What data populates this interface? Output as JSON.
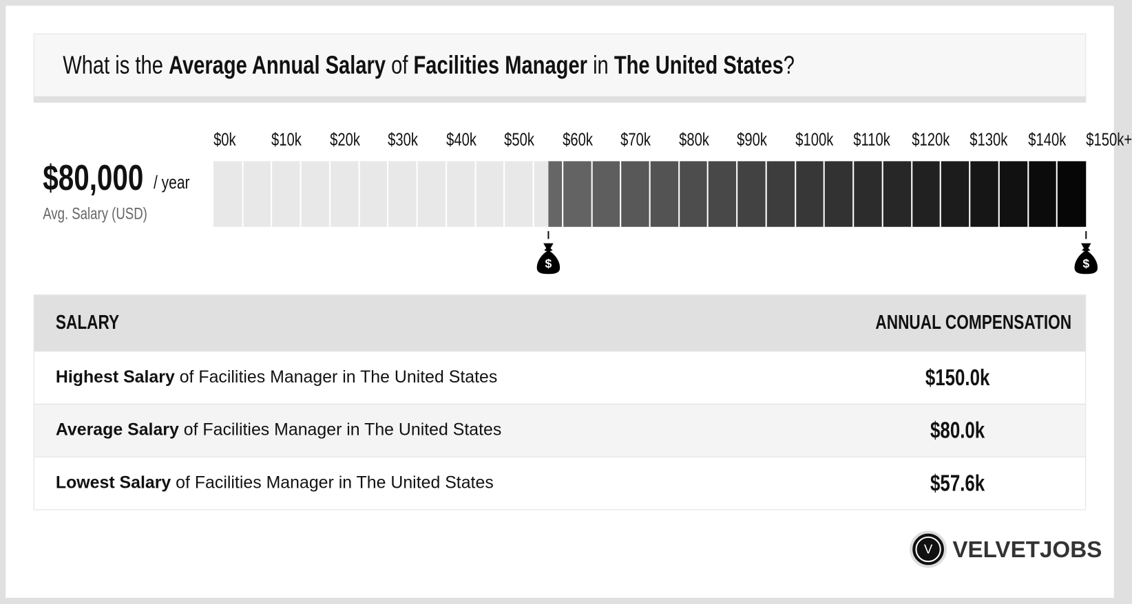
{
  "title": {
    "pre": "What is the ",
    "b1": "Average Annual Salary",
    "m1": " of ",
    "b2": "Facilities Manager",
    "m2": " in ",
    "b3": "The United States",
    "post": "?"
  },
  "summary": {
    "amount": "$80,000",
    "per": "/ year",
    "label": "Avg. Salary (USD)"
  },
  "scale": {
    "ticks": [
      "$0k",
      "$10k",
      "$20k",
      "$30k",
      "$40k",
      "$50k",
      "$60k",
      "$70k",
      "$80k",
      "$90k",
      "$100k",
      "$110k",
      "$120k",
      "$130k",
      "$140k",
      "$150k+"
    ],
    "min": 0,
    "max": 150,
    "step": 5,
    "range_low": 57.6,
    "range_high": 150,
    "light_color": "#e8e8e8",
    "dark_start": "#666666",
    "dark_end": "#000000",
    "marker_icon": "money-bag-icon"
  },
  "table": {
    "headers": [
      "SALARY",
      "ANNUAL COMPENSATION"
    ],
    "rows": [
      {
        "bold": "Highest Salary",
        "rest": " of Facilities Manager in The United States",
        "value": "$150.0k"
      },
      {
        "bold": "Average Salary",
        "rest": " of Facilities Manager in The United States",
        "value": "$80.0k"
      },
      {
        "bold": "Lowest Salary",
        "rest": " of Facilities Manager in The United States",
        "value": "$57.6k"
      }
    ]
  },
  "logo": {
    "mark": "V",
    "name": "VELVETJOBS"
  }
}
